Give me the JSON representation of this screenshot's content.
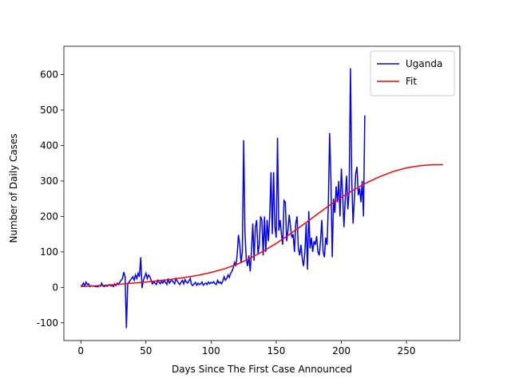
{
  "chart_data": {
    "type": "line",
    "xlabel": "Days Since The First Case Announced",
    "ylabel": "Number of Daily Cases",
    "xlim": [
      -13,
      291
    ],
    "xticks": [
      0,
      50,
      100,
      150,
      200,
      250
    ],
    "ylim": [
      -150,
      680
    ],
    "yticks": [
      -100,
      0,
      100,
      200,
      300,
      400,
      500,
      600
    ],
    "legend": "upper right",
    "series": [
      {
        "name": "Uganda",
        "color": "#0000ff",
        "x": [
          0,
          1,
          2,
          3,
          4,
          5,
          6,
          7,
          8,
          9,
          10,
          11,
          12,
          13,
          14,
          15,
          16,
          17,
          18,
          19,
          20,
          21,
          22,
          23,
          24,
          25,
          26,
          27,
          28,
          29,
          30,
          31,
          32,
          33,
          34,
          35,
          36,
          37,
          38,
          39,
          40,
          41,
          42,
          43,
          44,
          45,
          46,
          47,
          48,
          49,
          50,
          51,
          52,
          53,
          54,
          55,
          56,
          57,
          58,
          59,
          60,
          61,
          62,
          63,
          64,
          65,
          66,
          67,
          68,
          69,
          70,
          71,
          72,
          73,
          74,
          75,
          76,
          77,
          78,
          79,
          80,
          81,
          82,
          83,
          84,
          85,
          86,
          87,
          88,
          89,
          90,
          91,
          92,
          93,
          94,
          95,
          96,
          97,
          98,
          99,
          100,
          101,
          102,
          103,
          104,
          105,
          106,
          107,
          108,
          109,
          110,
          111,
          112,
          113,
          114,
          115,
          116,
          117,
          118,
          119,
          120,
          121,
          122,
          123,
          124,
          125,
          126,
          127,
          128,
          129,
          130,
          131,
          132,
          133,
          134,
          135,
          136,
          137,
          138,
          139,
          140,
          141,
          142,
          143,
          144,
          145,
          146,
          147,
          148,
          149,
          150,
          151,
          152,
          153,
          154,
          155,
          156,
          157,
          158,
          159,
          160,
          161,
          162,
          163,
          164,
          165,
          166,
          167,
          168,
          169,
          170,
          171,
          172,
          173,
          174,
          175,
          176,
          177,
          178,
          179,
          180,
          181,
          182,
          183,
          184,
          185,
          186,
          187,
          188,
          189,
          190,
          191,
          192,
          193,
          194,
          195,
          196,
          197,
          198,
          199,
          200,
          201,
          202,
          203,
          204,
          205,
          206,
          207,
          208,
          209,
          210,
          211,
          212,
          213,
          214,
          215,
          216,
          217,
          218
        ],
        "values": [
          3,
          5,
          12,
          4,
          15,
          8,
          10,
          2,
          5,
          3,
          4,
          2,
          3,
          1,
          5,
          3,
          12,
          4,
          2,
          6,
          3,
          5,
          8,
          4,
          6,
          2,
          10,
          5,
          12,
          8,
          15,
          20,
          25,
          43,
          30,
          -115,
          10,
          15,
          20,
          25,
          30,
          20,
          35,
          25,
          40,
          30,
          85,
          -2,
          20,
          30,
          40,
          25,
          35,
          30,
          20,
          10,
          15,
          12,
          8,
          20,
          15,
          10,
          18,
          12,
          20,
          14,
          8,
          25,
          12,
          18,
          20,
          15,
          10,
          25,
          18,
          12,
          8,
          15,
          20,
          10,
          22,
          15,
          12,
          18,
          25,
          8,
          5,
          10,
          14,
          6,
          12,
          8,
          10,
          15,
          6,
          10,
          12,
          8,
          15,
          10,
          14,
          12,
          16,
          10,
          8,
          20,
          12,
          15,
          10,
          18,
          30,
          20,
          25,
          35,
          28,
          40,
          45,
          55,
          70,
          60,
          90,
          148,
          120,
          70,
          100,
          415,
          155,
          80,
          60,
          90,
          45,
          100,
          180,
          75,
          170,
          190,
          95,
          120,
          200,
          190,
          90,
          200,
          100,
          190,
          130,
          200,
          325,
          150,
          325,
          170,
          140,
          422,
          160,
          190,
          150,
          120,
          245,
          240,
          130,
          160,
          205,
          170,
          140,
          150,
          100,
          180,
          200,
          110,
          90,
          120,
          80,
          60,
          100,
          180,
          50,
          215,
          110,
          140,
          100,
          130,
          120,
          145,
          100,
          90,
          130,
          190,
          100,
          85,
          140,
          120,
          230,
          435,
          300,
          85,
          250,
          210,
          285,
          240,
          300,
          200,
          335,
          260,
          170,
          250,
          315,
          220,
          270,
          618,
          300,
          180,
          250,
          320,
          340,
          260,
          280,
          240,
          300,
          200,
          485
        ]
      },
      {
        "name": "Fit",
        "color": "#ff0000",
        "x": [
          0,
          10,
          20,
          30,
          40,
          50,
          60,
          70,
          80,
          90,
          100,
          110,
          120,
          130,
          140,
          150,
          160,
          170,
          180,
          190,
          200,
          210,
          220,
          230,
          240,
          250,
          260,
          270,
          278
        ],
        "values": [
          2,
          4,
          6,
          9,
          12,
          15,
          19,
          23,
          28,
          34,
          42,
          52,
          65,
          82,
          102,
          124,
          149,
          175,
          202,
          229,
          254,
          276,
          296,
          313,
          327,
          337,
          343,
          346,
          346
        ]
      }
    ]
  }
}
